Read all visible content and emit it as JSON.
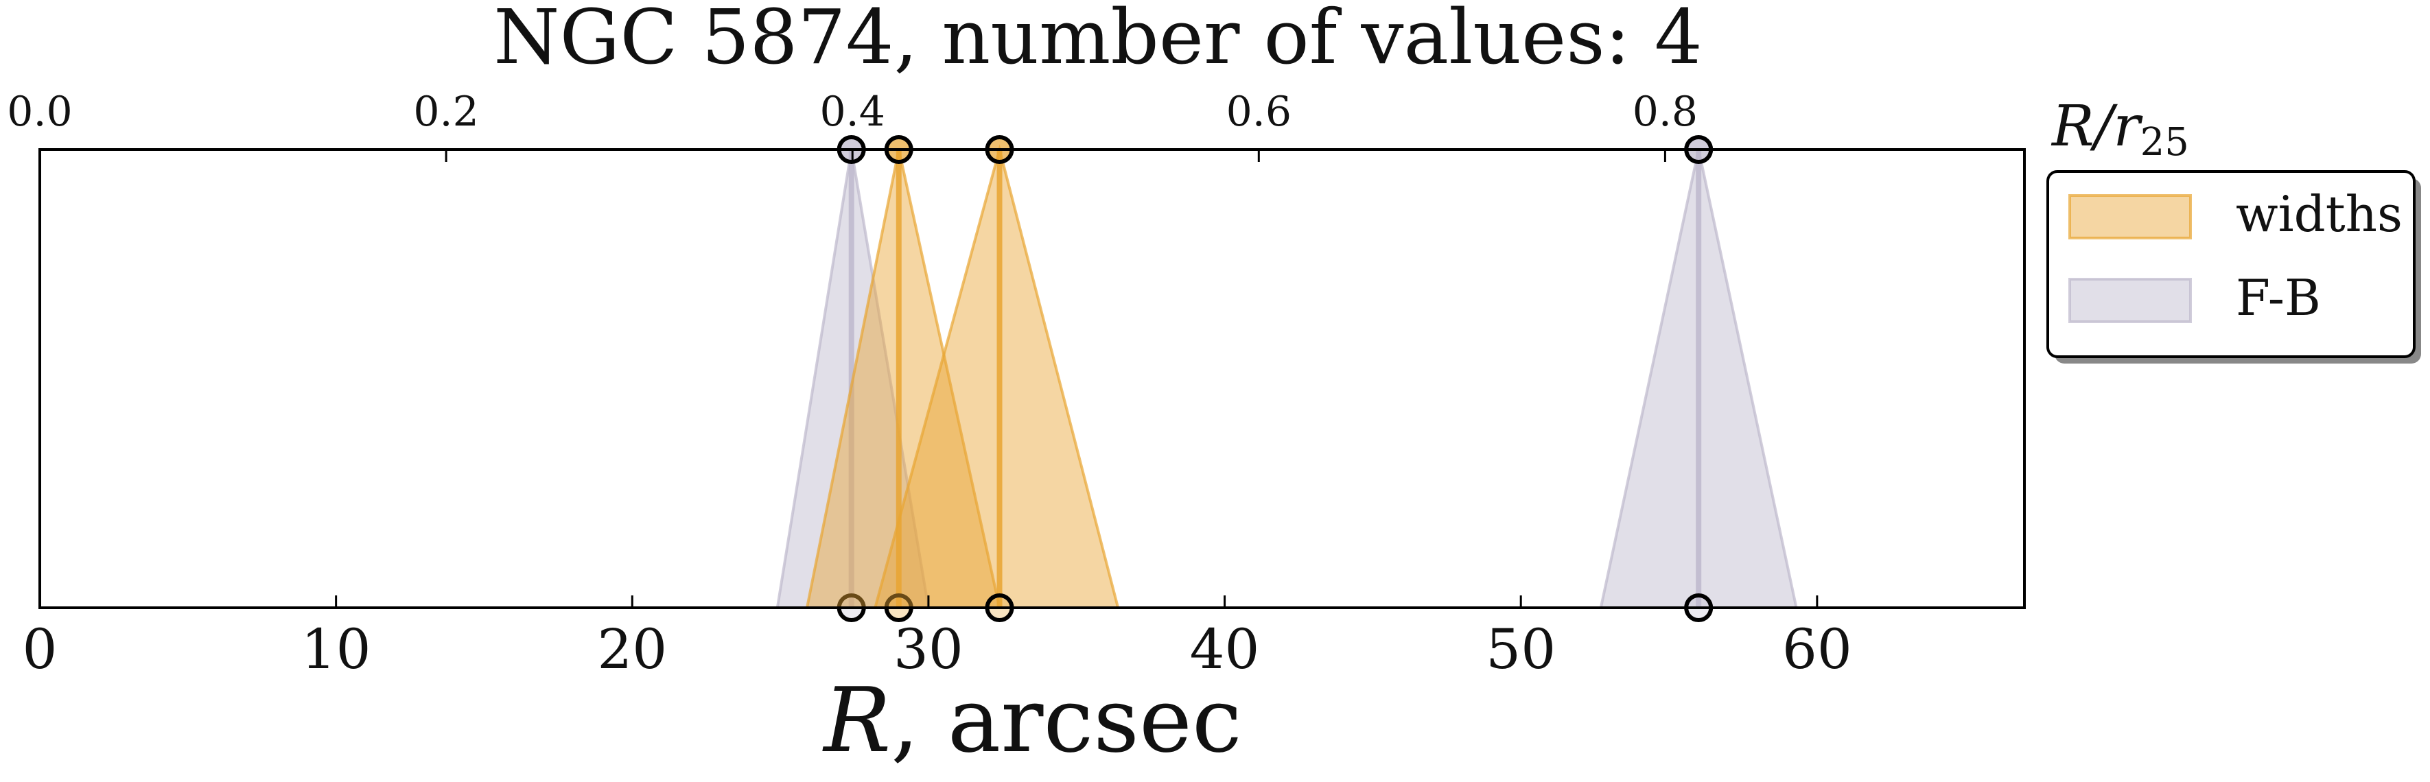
{
  "chart_data": {
    "type": "range-markers",
    "title": "NGC 5874, number of values: 4",
    "xlabel_main": "R",
    "xlabel_suffix": ", arcsec",
    "x2label": "R/r25",
    "xlim": [
      0,
      67
    ],
    "x_ticks": [
      0,
      10,
      20,
      30,
      40,
      50,
      60
    ],
    "x_tick_labels": [
      "0",
      "10",
      "20",
      "30",
      "40",
      "50",
      "60"
    ],
    "x2_per_x": 0.01458,
    "x2_ticks": [
      0.0,
      0.2,
      0.4,
      0.6,
      0.8
    ],
    "x2_tick_labels": [
      "0.0",
      "0.2",
      "0.4",
      "0.6",
      "0.8"
    ],
    "grid": false,
    "legend_position": "outside-right",
    "series": [
      {
        "name": "widths",
        "color": "#e8a532",
        "points": [
          {
            "x": 29.0,
            "lower": 25.9,
            "upper": 32.4
          },
          {
            "x": 32.4,
            "lower": 28.2,
            "upper": 36.4
          }
        ]
      },
      {
        "name": "F-B",
        "color": "#bdb8cc",
        "points": [
          {
            "x": 27.4,
            "lower": 24.9,
            "upper": 30.0
          },
          {
            "x": 56.0,
            "lower": 52.7,
            "upper": 59.3
          }
        ]
      }
    ]
  }
}
